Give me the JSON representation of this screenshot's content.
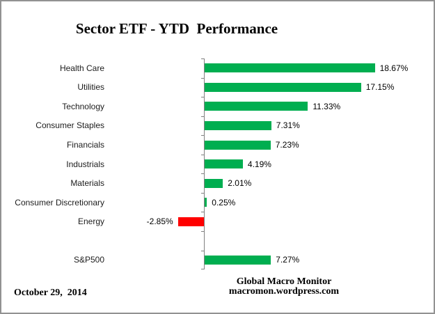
{
  "header": {
    "title": "Sector ETF - YTD  Performance"
  },
  "footer": {
    "date": "October 29,  2014",
    "attribution_line1": "Global Macro Monitor",
    "attribution_line2": "macromon.wordpress.com"
  },
  "chart_data": {
    "type": "bar",
    "orientation": "horizontal",
    "title": "Sector ETF - YTD  Performance",
    "categories": [
      "Health Care",
      "Utilities",
      "Technology",
      "Consumer Staples",
      "Financials",
      "Industrials",
      "Materials",
      "Consumer Discretionary",
      "Energy",
      "",
      "S&P500"
    ],
    "values": [
      18.67,
      17.15,
      11.33,
      7.31,
      7.23,
      4.19,
      2.01,
      0.25,
      -2.85,
      null,
      7.27
    ],
    "labels": [
      "18.67%",
      "17.15%",
      "11.33%",
      "7.31%",
      "7.23%",
      "4.19%",
      "2.01%",
      "0.25%",
      "-2.85%",
      "",
      "7.27%"
    ],
    "xlabel": "",
    "ylabel": "",
    "xlim": [
      -3,
      19.5
    ],
    "grid": false,
    "legend": false,
    "colors": {
      "positive": "#00AE50",
      "negative": "#FF0000",
      "axis": "#808080"
    }
  }
}
